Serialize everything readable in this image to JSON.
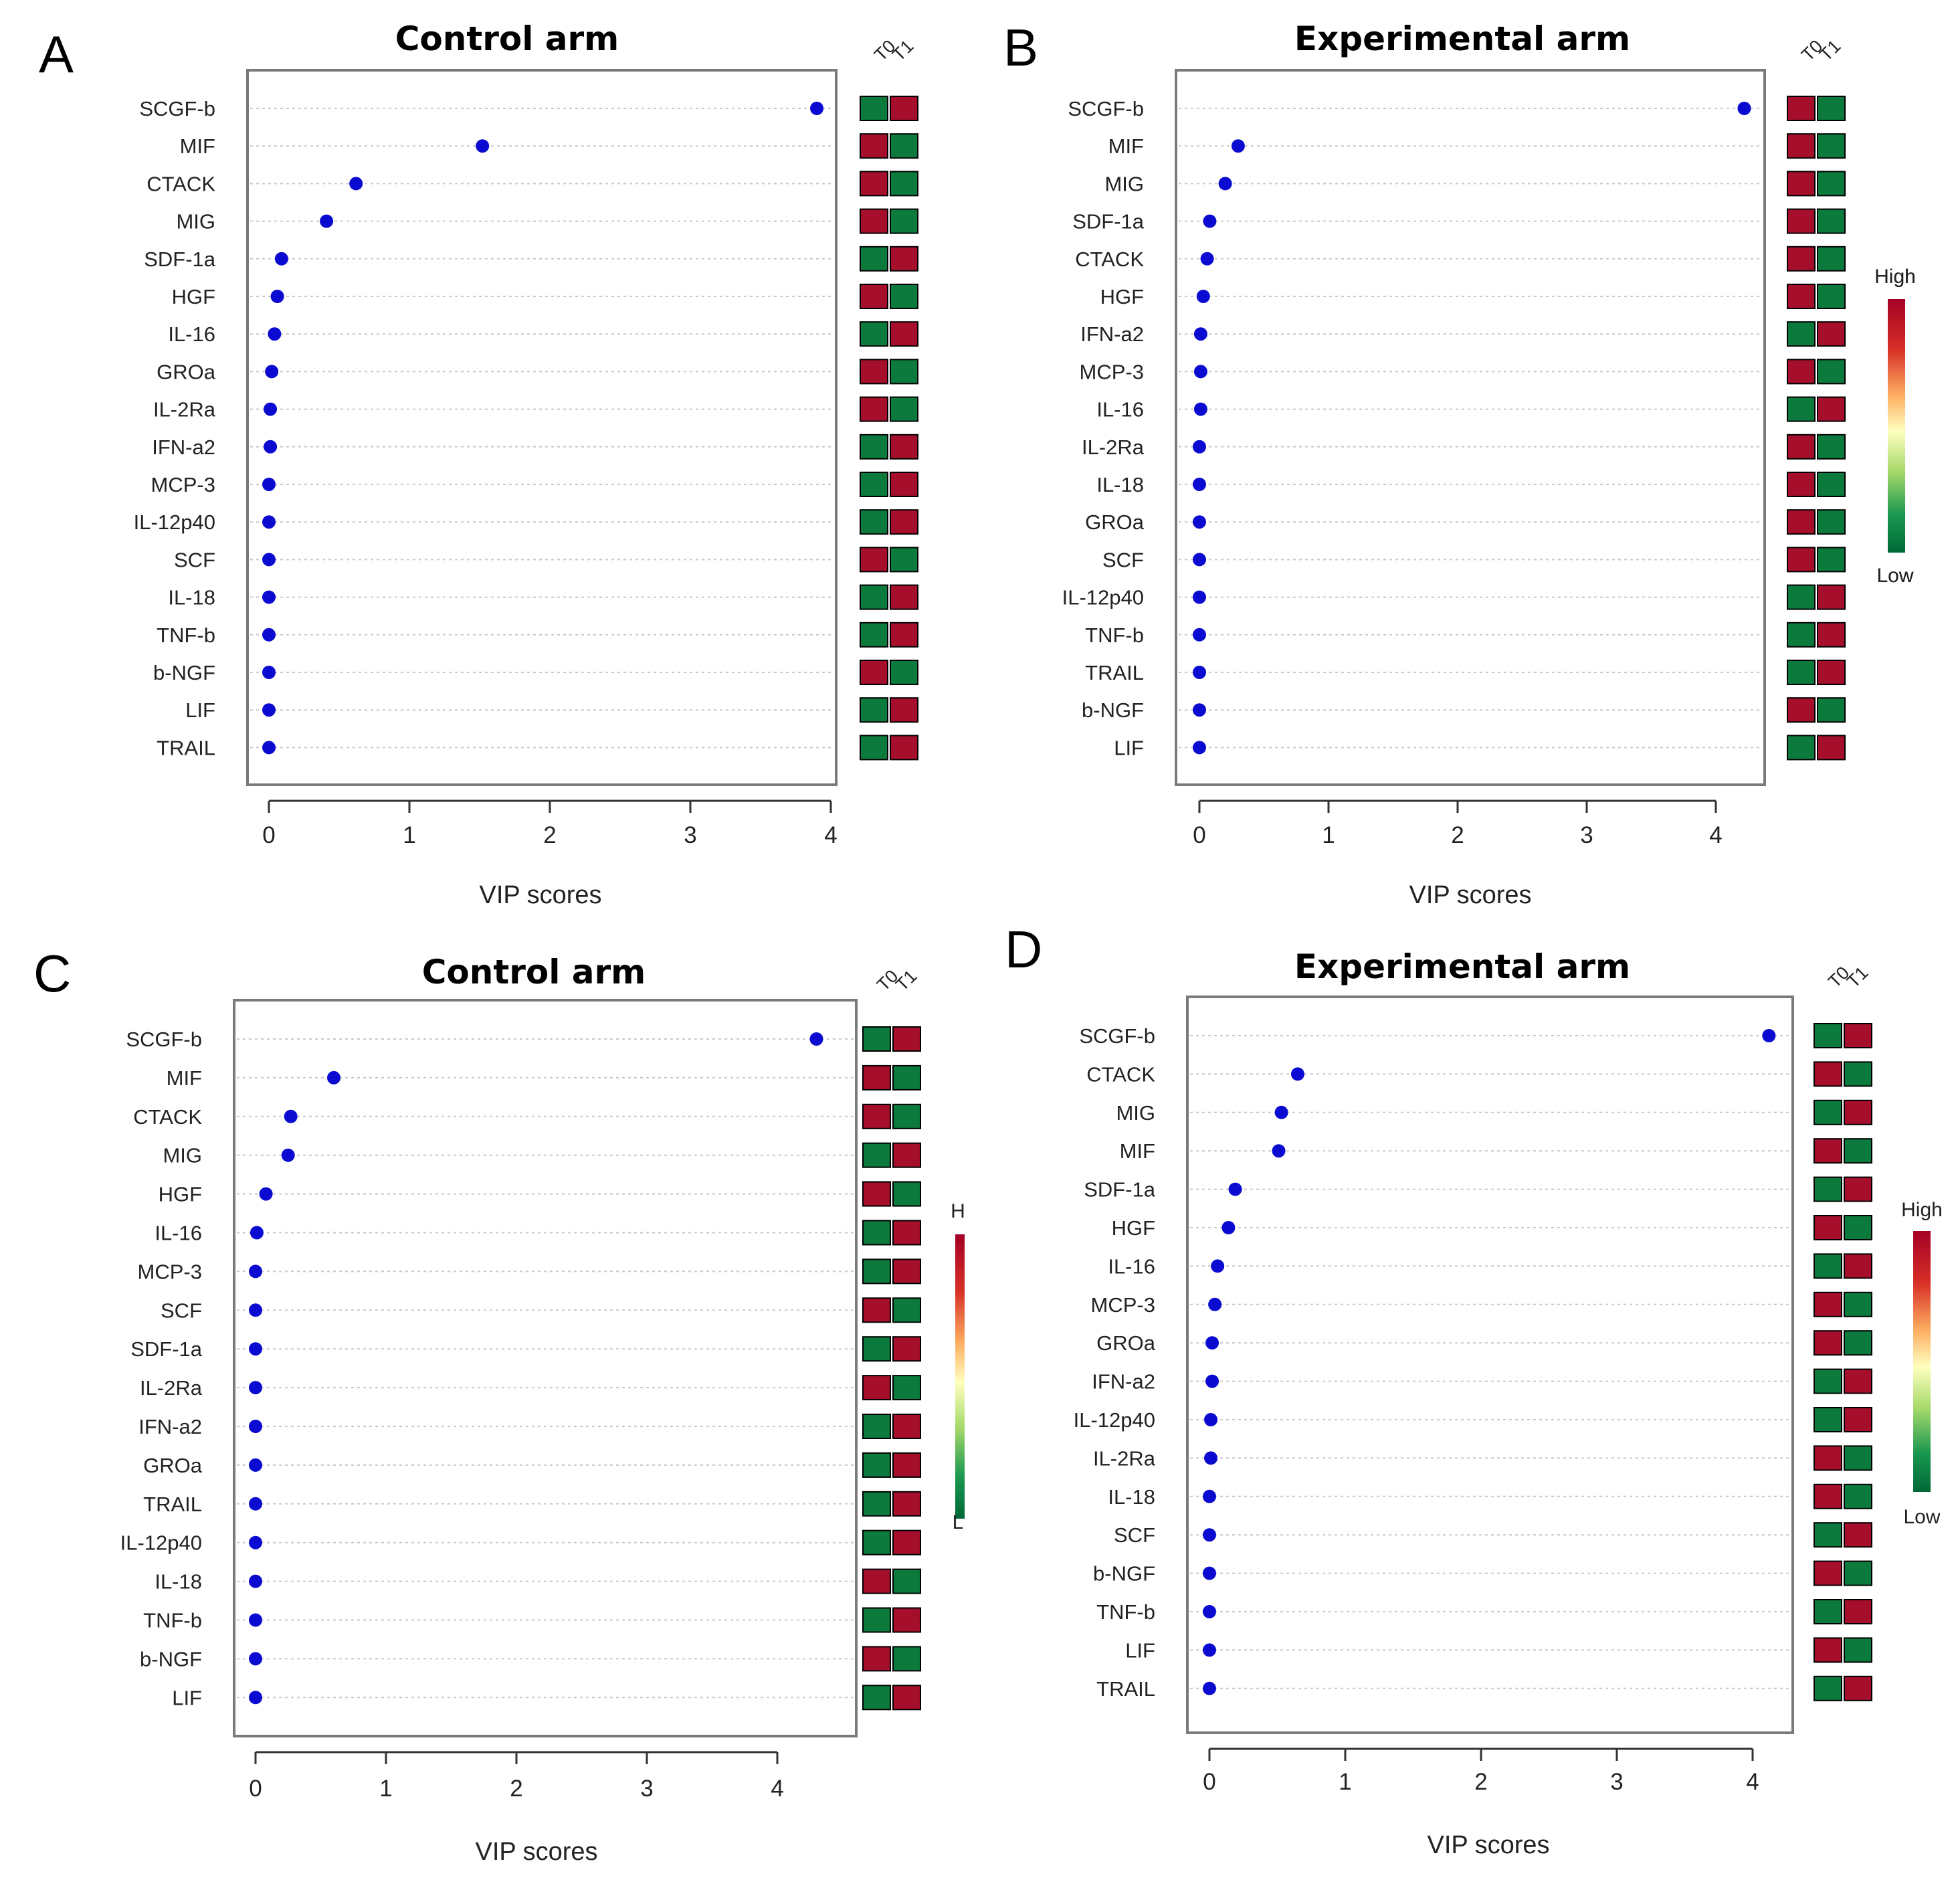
{
  "chart_data": [
    {
      "type": "scatter",
      "panel": "A",
      "title": "Control arm",
      "xlabel": "VIP scores",
      "ylabel": "",
      "xlim": [
        -0.15,
        4.15
      ],
      "xticks": [
        "0",
        "1",
        "2",
        "3",
        "4"
      ],
      "grid": true,
      "heat_headers": [
        "T0",
        "T1"
      ],
      "legend": {
        "high": "High",
        "low": "Low",
        "placement": "right"
      },
      "categories": [
        "SCGF-b",
        "MIF",
        "CTACK",
        "MIG",
        "SDF-1a",
        "HGF",
        "IL-16",
        "GROa",
        "IL-2Ra",
        "IFN-a2",
        "MCP-3",
        "IL-12p40",
        "SCF",
        "IL-18",
        "TNF-b",
        "b-NGF",
        "LIF",
        "TRAIL"
      ],
      "values": [
        3.9,
        1.52,
        0.62,
        0.41,
        0.09,
        0.06,
        0.04,
        0.02,
        0.01,
        0.01,
        0.0,
        0.0,
        0.0,
        0.0,
        0.0,
        0.0,
        0.0,
        0.0
      ],
      "heat": [
        [
          "green",
          "red"
        ],
        [
          "red",
          "green"
        ],
        [
          "red",
          "green"
        ],
        [
          "red",
          "green"
        ],
        [
          "green",
          "red"
        ],
        [
          "red",
          "green"
        ],
        [
          "green",
          "red"
        ],
        [
          "red",
          "green"
        ],
        [
          "red",
          "green"
        ],
        [
          "green",
          "red"
        ],
        [
          "green",
          "red"
        ],
        [
          "green",
          "red"
        ],
        [
          "red",
          "green"
        ],
        [
          "green",
          "red"
        ],
        [
          "green",
          "red"
        ],
        [
          "red",
          "green"
        ],
        [
          "green",
          "red"
        ],
        [
          "green",
          "red"
        ]
      ]
    },
    {
      "type": "scatter",
      "panel": "B",
      "title": "Experimental arm",
      "xlabel": "VIP scores",
      "ylabel": "",
      "xlim": [
        -0.17,
        4.4
      ],
      "xticks": [
        "0",
        "1",
        "2",
        "3",
        "4"
      ],
      "grid": true,
      "heat_headers": [
        "T0",
        "T1"
      ],
      "legend": {
        "high": "High",
        "low": "Low",
        "placement": "right"
      },
      "categories": [
        "SCGF-b",
        "MIF",
        "MIG",
        "SDF-1a",
        "CTACK",
        "HGF",
        "IFN-a2",
        "MCP-3",
        "IL-16",
        "IL-2Ra",
        "IL-18",
        "GROa",
        "SCF",
        "IL-12p40",
        "TNF-b",
        "TRAIL",
        "b-NGF",
        "LIF"
      ],
      "values": [
        4.22,
        0.3,
        0.2,
        0.08,
        0.06,
        0.03,
        0.01,
        0.01,
        0.01,
        0.0,
        0.0,
        0.0,
        0.0,
        0.0,
        0.0,
        0.0,
        0.0,
        0.0
      ],
      "heat": [
        [
          "red",
          "green"
        ],
        [
          "red",
          "green"
        ],
        [
          "red",
          "green"
        ],
        [
          "red",
          "green"
        ],
        [
          "red",
          "green"
        ],
        [
          "red",
          "green"
        ],
        [
          "green",
          "red"
        ],
        [
          "red",
          "green"
        ],
        [
          "green",
          "red"
        ],
        [
          "red",
          "green"
        ],
        [
          "red",
          "green"
        ],
        [
          "red",
          "green"
        ],
        [
          "red",
          "green"
        ],
        [
          "green",
          "red"
        ],
        [
          "green",
          "red"
        ],
        [
          "green",
          "red"
        ],
        [
          "red",
          "green"
        ],
        [
          "green",
          "red"
        ]
      ]
    },
    {
      "type": "scatter",
      "panel": "C",
      "title": "Control arm",
      "xlabel": "VIP scores",
      "ylabel": "",
      "xlim": [
        -0.17,
        4.4
      ],
      "xticks": [
        "0",
        "1",
        "2",
        "3",
        "4"
      ],
      "grid": true,
      "heat_headers": [
        "T0",
        "T1"
      ],
      "legend": {
        "high": "H",
        "low": "L",
        "placement": "right (clipped)"
      },
      "categories": [
        "SCGF-b",
        "MIF",
        "CTACK",
        "MIG",
        "HGF",
        "IL-16",
        "MCP-3",
        "SCF",
        "SDF-1a",
        "IL-2Ra",
        "IFN-a2",
        "GROa",
        "TRAIL",
        "IL-12p40",
        "IL-18",
        "TNF-b",
        "b-NGF",
        "LIF"
      ],
      "values": [
        4.3,
        0.6,
        0.27,
        0.25,
        0.08,
        0.01,
        0.0,
        0.0,
        0.0,
        0.0,
        0.0,
        0.0,
        0.0,
        0.0,
        0.0,
        0.0,
        0.0,
        0.0
      ],
      "heat": [
        [
          "green",
          "red"
        ],
        [
          "red",
          "green"
        ],
        [
          "red",
          "green"
        ],
        [
          "green",
          "red"
        ],
        [
          "red",
          "green"
        ],
        [
          "green",
          "red"
        ],
        [
          "green",
          "red"
        ],
        [
          "red",
          "green"
        ],
        [
          "green",
          "red"
        ],
        [
          "red",
          "green"
        ],
        [
          "green",
          "red"
        ],
        [
          "green",
          "red"
        ],
        [
          "green",
          "red"
        ],
        [
          "green",
          "red"
        ],
        [
          "red",
          "green"
        ],
        [
          "green",
          "red"
        ],
        [
          "red",
          "green"
        ],
        [
          "green",
          "red"
        ]
      ]
    },
    {
      "type": "scatter",
      "panel": "D",
      "title": "Experimental arm",
      "xlabel": "VIP scores",
      "ylabel": "",
      "xlim": [
        -0.17,
        4.3
      ],
      "xticks": [
        "0",
        "1",
        "2",
        "3",
        "4"
      ],
      "grid": true,
      "heat_headers": [
        "T0",
        "T1"
      ],
      "legend": {
        "high": "High",
        "low": "Low",
        "placement": "right"
      },
      "categories": [
        "SCGF-b",
        "CTACK",
        "MIG",
        "MIF",
        "SDF-1a",
        "HGF",
        "IL-16",
        "MCP-3",
        "GROa",
        "IFN-a2",
        "IL-12p40",
        "IL-2Ra",
        "IL-18",
        "SCF",
        "b-NGF",
        "TNF-b",
        "LIF",
        "TRAIL"
      ],
      "values": [
        4.12,
        0.65,
        0.53,
        0.51,
        0.19,
        0.14,
        0.06,
        0.04,
        0.02,
        0.02,
        0.01,
        0.01,
        0.0,
        0.0,
        0.0,
        0.0,
        0.0,
        0.0
      ],
      "heat": [
        [
          "green",
          "red"
        ],
        [
          "red",
          "green"
        ],
        [
          "green",
          "red"
        ],
        [
          "red",
          "green"
        ],
        [
          "green",
          "red"
        ],
        [
          "red",
          "green"
        ],
        [
          "green",
          "red"
        ],
        [
          "red",
          "green"
        ],
        [
          "red",
          "green"
        ],
        [
          "green",
          "red"
        ],
        [
          "green",
          "red"
        ],
        [
          "red",
          "green"
        ],
        [
          "red",
          "green"
        ],
        [
          "green",
          "red"
        ],
        [
          "red",
          "green"
        ],
        [
          "green",
          "red"
        ],
        [
          "red",
          "green"
        ],
        [
          "green",
          "red"
        ]
      ]
    }
  ],
  "colors": {
    "dot": "#0a0ad0",
    "heat_red": "#a50f2b",
    "heat_green": "#0b7a3c",
    "frame": "#7a7a7a",
    "grid": "#c8c8c8",
    "gradient": [
      "#a50026",
      "#d73027",
      "#fdae61",
      "#ffffbf",
      "#a6d96a",
      "#1a9850",
      "#006837"
    ]
  }
}
